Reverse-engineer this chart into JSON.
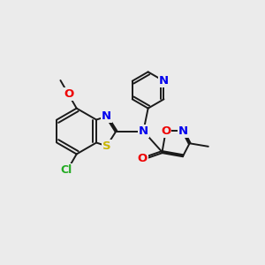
{
  "bg_color": "#ebebeb",
  "bond_color": "#1a1a1a",
  "bond_width": 1.4,
  "atoms": {
    "S": {
      "color": "#c8b400",
      "fontsize": 9.5
    },
    "N": {
      "color": "#0000ee",
      "fontsize": 9.5
    },
    "O": {
      "color": "#ee0000",
      "fontsize": 9.5
    },
    "Cl": {
      "color": "#22aa22",
      "fontsize": 9.0
    }
  },
  "figsize": [
    3.0,
    3.0
  ],
  "dpi": 100
}
